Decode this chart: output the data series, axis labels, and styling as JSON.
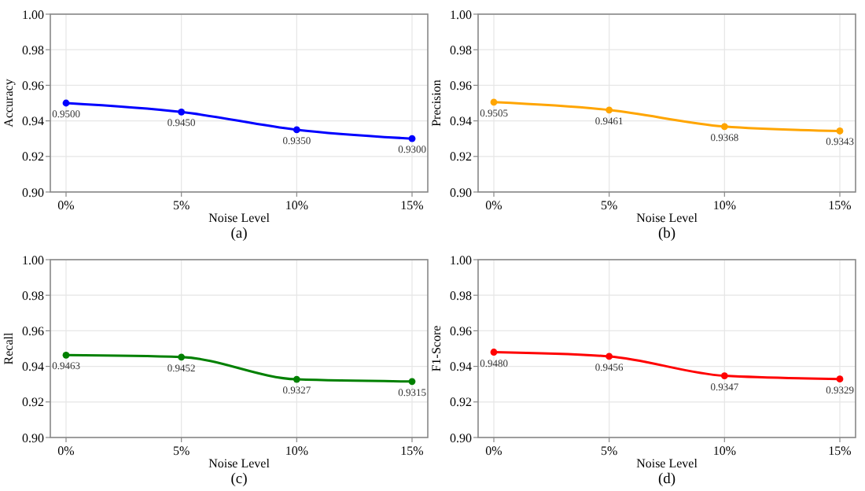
{
  "chart_data": [
    {
      "type": "line",
      "title": "(a)",
      "xlabel": "Noise Level",
      "ylabel": "Accuracy",
      "categories": [
        "0%",
        "5%",
        "10%",
        "15%"
      ],
      "series": [
        {
          "color": "#0000ff",
          "values": [
            0.95,
            0.945,
            0.935,
            0.93
          ]
        }
      ],
      "ylim": [
        0.9,
        1.0
      ],
      "yticks": [
        {
          "value": 0.9,
          "label": "0.90"
        },
        {
          "value": 0.92,
          "label": "0.92"
        },
        {
          "value": 0.94,
          "label": "0.94"
        },
        {
          "value": 0.96,
          "label": "0.96"
        },
        {
          "value": 0.98,
          "label": "0.98"
        },
        {
          "value": 1.0,
          "label": "1.00"
        }
      ],
      "grid": true,
      "marker": "circle",
      "value_labels": [
        "0.9500",
        "0.9450",
        "0.9350",
        "0.9300"
      ]
    },
    {
      "type": "line",
      "title": "(b)",
      "xlabel": "Noise Level",
      "ylabel": "Precision",
      "categories": [
        "0%",
        "5%",
        "10%",
        "15%"
      ],
      "series": [
        {
          "color": "#ffa500",
          "values": [
            0.9505,
            0.9461,
            0.9368,
            0.9343
          ]
        }
      ],
      "ylim": [
        0.9,
        1.0
      ],
      "yticks": [
        {
          "value": 0.9,
          "label": "0.90"
        },
        {
          "value": 0.92,
          "label": "0.92"
        },
        {
          "value": 0.94,
          "label": "0.94"
        },
        {
          "value": 0.96,
          "label": "0.96"
        },
        {
          "value": 0.98,
          "label": "0.98"
        },
        {
          "value": 1.0,
          "label": "1.00"
        }
      ],
      "grid": true,
      "marker": "circle",
      "value_labels": [
        "0.9505",
        "0.9461",
        "0.9368",
        "0.9343"
      ]
    },
    {
      "type": "line",
      "title": "(c)",
      "xlabel": "Noise Level",
      "ylabel": "Recall",
      "categories": [
        "0%",
        "5%",
        "10%",
        "15%"
      ],
      "series": [
        {
          "color": "#008000",
          "values": [
            0.9463,
            0.9452,
            0.9327,
            0.9315
          ]
        }
      ],
      "ylim": [
        0.9,
        1.0
      ],
      "yticks": [
        {
          "value": 0.9,
          "label": "0.90"
        },
        {
          "value": 0.92,
          "label": "0.92"
        },
        {
          "value": 0.94,
          "label": "0.94"
        },
        {
          "value": 0.96,
          "label": "0.96"
        },
        {
          "value": 0.98,
          "label": "0.98"
        },
        {
          "value": 1.0,
          "label": "1.00"
        }
      ],
      "grid": true,
      "marker": "circle",
      "value_labels": [
        "0.9463",
        "0.9452",
        "0.9327",
        "0.9315"
      ]
    },
    {
      "type": "line",
      "title": "(d)",
      "xlabel": "Noise Level",
      "ylabel": "F1-Score",
      "categories": [
        "0%",
        "5%",
        "10%",
        "15%"
      ],
      "series": [
        {
          "color": "#ff0000",
          "values": [
            0.948,
            0.9456,
            0.9347,
            0.9329
          ]
        }
      ],
      "ylim": [
        0.9,
        1.0
      ],
      "yticks": [
        {
          "value": 0.9,
          "label": "0.90"
        },
        {
          "value": 0.92,
          "label": "0.92"
        },
        {
          "value": 0.94,
          "label": "0.94"
        },
        {
          "value": 0.96,
          "label": "0.96"
        },
        {
          "value": 0.98,
          "label": "0.98"
        },
        {
          "value": 1.0,
          "label": "1.00"
        }
      ],
      "grid": true,
      "marker": "circle",
      "value_labels": [
        "0.9480",
        "0.9456",
        "0.9347",
        "0.9329"
      ]
    }
  ]
}
